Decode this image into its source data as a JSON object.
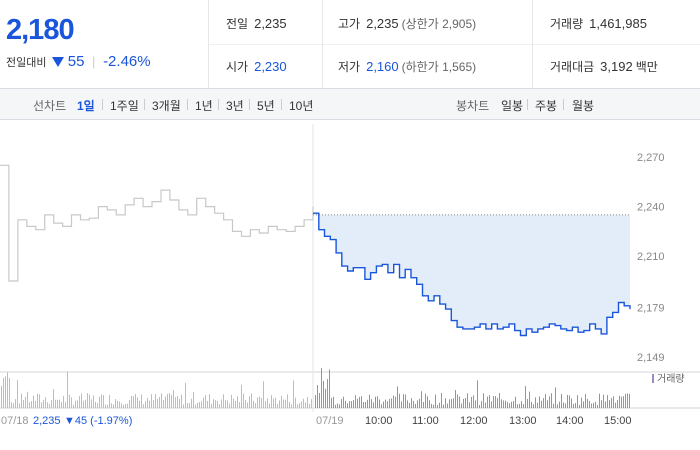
{
  "summary": {
    "price": "2,180",
    "change_label": "전일대비",
    "change_amount": "55",
    "change_percent": "-2.46%",
    "prev_close_label": "전일",
    "prev_close": "2,235",
    "open_label": "시가",
    "open": "2,230",
    "high_label": "고가",
    "high": "2,235",
    "upper_limit": "(상한가 2,905)",
    "low_label": "저가",
    "low": "2,160",
    "lower_limit": "(하한가 1,565)",
    "volume_label": "거래량",
    "volume": "1,461,985",
    "amount_label": "거래대금",
    "amount": "3,192",
    "amount_unit": "백만"
  },
  "tabs": {
    "line_label": "선차트",
    "line_periods": [
      "1일",
      "1주일",
      "3개월",
      "1년",
      "3년",
      "5년",
      "10년"
    ],
    "active_period": "1일",
    "candle_label": "봉차트",
    "candle_periods": [
      "일봉",
      "주봉",
      "월봉"
    ]
  },
  "colors": {
    "accent": "#1a56db",
    "fill": "#e3edfa",
    "prev_line": "#c8c8c8",
    "volume_cur": "#9b8ac4",
    "volume_prev": "#bdbdbd"
  },
  "chart_data": {
    "type": "line",
    "y_ticks": [
      "2,270",
      "2,240",
      "2,210",
      "2,179",
      "2,149"
    ],
    "y_tick_values": [
      2270,
      2240,
      2210,
      2179,
      2149
    ],
    "ylim": [
      2140,
      2285
    ],
    "x_ticks": [
      "07/19",
      "10:00",
      "11:00",
      "12:00",
      "13:00",
      "14:00",
      "15:00"
    ],
    "prev_day_label": "07/18",
    "prev_day_close": "2,235",
    "prev_day_change": "▼45 (-1.97%)",
    "volume_legend": "거래량",
    "reference_level": 2235,
    "prev_day_series": [
      2265,
      2195,
      2232,
      2228,
      2226,
      2235,
      2230,
      2228,
      2235,
      2232,
      2233,
      2240,
      2238,
      2235,
      2241,
      2245,
      2240,
      2243,
      2250,
      2244,
      2238,
      2235,
      2245,
      2240,
      2236,
      2232,
      2225,
      2222,
      2226,
      2224,
      2228,
      2226,
      2225,
      2228,
      2232,
      2240
    ],
    "today_series": [
      2236,
      2226,
      2222,
      2220,
      2212,
      2204,
      2201,
      2203,
      2203,
      2196,
      2200,
      2204,
      2205,
      2200,
      2205,
      2197,
      2202,
      2197,
      2193,
      2186,
      2183,
      2186,
      2181,
      2178,
      2171,
      2167,
      2166,
      2166,
      2167,
      2169,
      2166,
      2169,
      2166,
      2167,
      2169,
      2165,
      2162,
      2166,
      2164,
      2166,
      2167,
      2169,
      2168,
      2166,
      2165,
      2167,
      2164,
      2165,
      2169,
      2166,
      2163,
      2173,
      2176,
      2182,
      2180,
      2178
    ]
  }
}
